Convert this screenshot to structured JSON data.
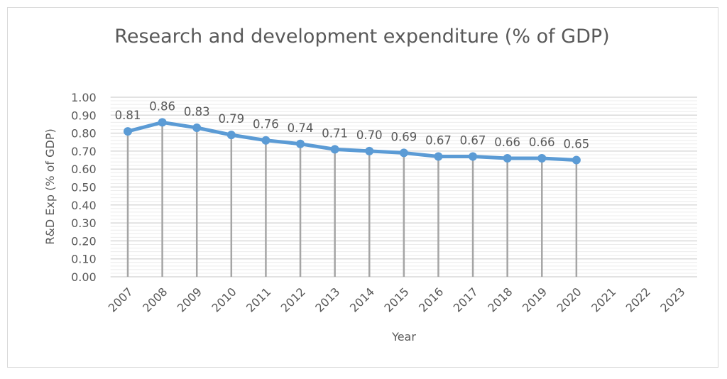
{
  "chart_data": {
    "type": "line",
    "title": "Research and development expenditure (% of GDP)",
    "xlabel": "Year",
    "ylabel": "R&D Exp (% of GDP)",
    "categories": [
      "2007",
      "2008",
      "2009",
      "2010",
      "2011",
      "2012",
      "2013",
      "2014",
      "2015",
      "2016",
      "2017",
      "2018",
      "2019",
      "2020",
      "2021",
      "2022",
      "2023"
    ],
    "series": [
      {
        "values": [
          0.81,
          0.86,
          0.83,
          0.79,
          0.76,
          0.74,
          0.71,
          0.7,
          0.69,
          0.67,
          0.67,
          0.66,
          0.66,
          0.65,
          null,
          null,
          null
        ]
      }
    ],
    "data_labels": [
      "0.81",
      "0.86",
      "0.83",
      "0.79",
      "0.76",
      "0.74",
      "0.71",
      "0.70",
      "0.69",
      "0.67",
      "0.67",
      "0.66",
      "0.66",
      "0.65"
    ],
    "ylim": [
      0,
      1.0
    ],
    "yticks": [
      "0.00",
      "0.10",
      "0.20",
      "0.30",
      "0.40",
      "0.50",
      "0.60",
      "0.70",
      "0.80",
      "0.90",
      "1.00"
    ],
    "grid": true,
    "drop_lines": true,
    "legend": "none",
    "colors": {
      "line": "#5b9bd5",
      "drop_line": "#a5a5a5",
      "grid": "#d9d9d9",
      "text": "#595959"
    }
  }
}
